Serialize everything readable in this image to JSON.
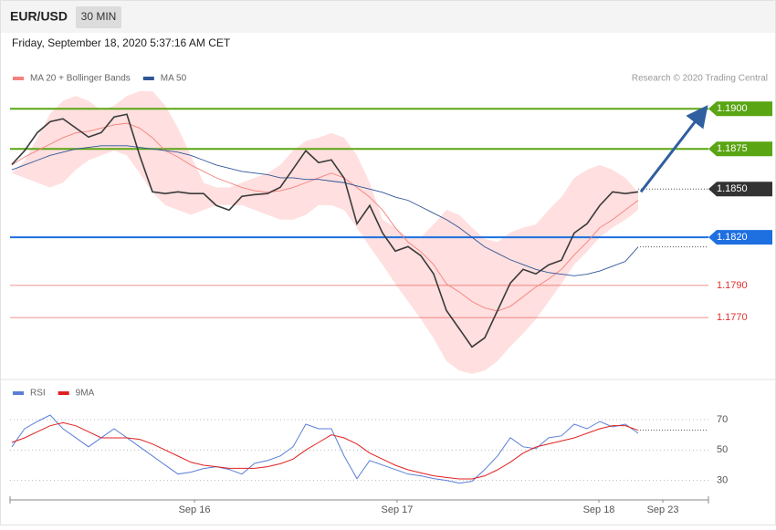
{
  "header": {
    "symbol": "EUR/USD",
    "timeframe": "30 MIN",
    "timestamp": "Friday, September 18, 2020 5:37:16 AM CET"
  },
  "chart_data": [
    {
      "type": "line",
      "credit": "Research © 2020 Trading Central",
      "x": [
        0,
        1,
        2,
        3,
        4,
        5,
        6,
        7,
        8,
        9,
        10,
        11,
        12,
        13,
        14,
        15,
        16,
        17,
        18,
        19,
        20,
        21,
        22,
        23,
        24,
        25,
        26,
        27,
        28,
        29,
        30,
        31,
        32,
        33,
        34,
        35,
        36,
        37,
        38,
        39,
        40,
        41,
        42,
        43,
        44,
        45,
        46,
        47,
        48,
        49
      ],
      "values": [
        1.18653,
        1.18739,
        1.18852,
        1.1892,
        1.18938,
        1.18881,
        1.18824,
        1.18852,
        1.18949,
        1.18966,
        1.1871,
        1.18483,
        1.18472,
        1.18483,
        1.18472,
        1.18472,
        1.18398,
        1.18369,
        1.18455,
        1.18466,
        1.18472,
        1.18511,
        1.18625,
        1.18739,
        1.18665,
        1.18682,
        1.18568,
        1.18284,
        1.18398,
        1.18227,
        1.18114,
        1.18142,
        1.18085,
        1.17972,
        1.17744,
        1.17631,
        1.17517,
        1.17574,
        1.17744,
        1.17915,
        1.18,
        1.17972,
        1.18028,
        1.18057,
        1.18227,
        1.18284,
        1.18398,
        1.18483,
        1.18472,
        1.18483
      ],
      "color": "#3a3a3a",
      "series": [
        {
          "name": "MA 20 + Bollinger Bands",
          "color": "#f4817c",
          "values": [
            1.1865,
            1.187,
            1.1874,
            1.1878,
            1.1882,
            1.1885,
            1.1886,
            1.1888,
            1.189,
            1.1891,
            1.1888,
            1.1882,
            1.1874,
            1.187,
            1.1865,
            1.1861,
            1.1857,
            1.1854,
            1.1851,
            1.1849,
            1.1848,
            1.1849,
            1.1851,
            1.1854,
            1.1857,
            1.186,
            1.1857,
            1.1851,
            1.1845,
            1.1837,
            1.1826,
            1.1817,
            1.1811,
            1.1803,
            1.1791,
            1.1786,
            1.178,
            1.1776,
            1.1774,
            1.1777,
            1.1783,
            1.1789,
            1.1794,
            1.18,
            1.1809,
            1.1817,
            1.1826,
            1.1831,
            1.1837,
            1.1843
          ]
        },
        {
          "name": "MA 50",
          "color": "#2f5597",
          "values": [
            1.1862,
            1.1865,
            1.1868,
            1.1871,
            1.1873,
            1.1875,
            1.1876,
            1.1877,
            1.1877,
            1.1877,
            1.1876,
            1.1875,
            1.1874,
            1.1873,
            1.1871,
            1.1868,
            1.1865,
            1.1863,
            1.1861,
            1.186,
            1.1859,
            1.1857,
            1.1857,
            1.1856,
            1.1856,
            1.1855,
            1.1854,
            1.1852,
            1.185,
            1.1848,
            1.1845,
            1.1843,
            1.1839,
            1.1835,
            1.1831,
            1.1826,
            1.182,
            1.1814,
            1.181,
            1.1806,
            1.1803,
            1.18,
            1.1798,
            1.1797,
            1.1796,
            1.1797,
            1.1799,
            1.1802,
            1.1805,
            1.1814
          ]
        }
      ],
      "band": {
        "color": "#ffdfdf",
        "upper": [
          1.186,
          1.1868,
          1.1882,
          1.1897,
          1.1905,
          1.1908,
          1.1905,
          1.1899,
          1.1902,
          1.1908,
          1.1911,
          1.1911,
          1.1902,
          1.1888,
          1.1871,
          1.1854,
          1.1851,
          1.1851,
          1.1854,
          1.1857,
          1.186,
          1.1865,
          1.1874,
          1.188,
          1.1882,
          1.1885,
          1.1882,
          1.1871,
          1.1854,
          1.1831,
          1.1826,
          1.182,
          1.182,
          1.1828,
          1.1837,
          1.1834,
          1.1826,
          1.1819,
          1.1817,
          1.1823,
          1.1826,
          1.1828,
          1.1837,
          1.1845,
          1.1857,
          1.1862,
          1.1865,
          1.1862,
          1.1857,
          1.1848
        ],
        "lower": [
          1.186,
          1.1857,
          1.1854,
          1.1851,
          1.1854,
          1.1862,
          1.1868,
          1.1871,
          1.1874,
          1.1871,
          1.186,
          1.1848,
          1.184,
          1.1837,
          1.1834,
          1.1837,
          1.184,
          1.184,
          1.184,
          1.1837,
          1.1834,
          1.1831,
          1.1831,
          1.1834,
          1.184,
          1.184,
          1.1837,
          1.1826,
          1.1814,
          1.1803,
          1.1791,
          1.178,
          1.1769,
          1.1757,
          1.1743,
          1.1737,
          1.1735,
          1.1737,
          1.1743,
          1.1752,
          1.176,
          1.1769,
          1.178,
          1.1791,
          1.1803,
          1.1811,
          1.182,
          1.1826,
          1.1831,
          1.1837
        ]
      },
      "ylim": [
        1.1732,
        1.1928
      ],
      "levels": [
        {
          "value": 1.19,
          "label": "1.1900",
          "color": "#5aa513",
          "kind": "fill",
          "line": "solid"
        },
        {
          "value": 1.1875,
          "color": "#5aa513",
          "kind": "fill",
          "line": "solid"
        },
        {
          "value": 1.185,
          "label": "1.1850",
          "color": "#333333",
          "kind": "fill",
          "line": "dotted"
        },
        {
          "value": 1.182,
          "label": "1.1820",
          "color": "#1e6fe0",
          "kind": "fill",
          "line": "solid"
        },
        {
          "value": 1.179,
          "label": "1.1790",
          "color": "#e03030",
          "kind": "text",
          "line": "thin"
        },
        {
          "value": 1.177,
          "label": "1.1770",
          "color": "#e03030",
          "kind": "text",
          "line": "thin"
        }
      ],
      "arrow_color": "#2f5fa0"
    },
    {
      "type": "line",
      "series": [
        {
          "name": "RSI",
          "color": "#5b7fd6",
          "values": [
            52.1,
            64.0,
            68.8,
            73.0,
            64.0,
            58.1,
            52.1,
            58.1,
            64.0,
            58.1,
            52.1,
            46.1,
            40.1,
            34.2,
            35.4,
            37.8,
            39.0,
            37.2,
            34.2,
            41.3,
            43.1,
            46.1,
            52.1,
            67.0,
            64.0,
            64.0,
            46.1,
            31.2,
            43.1,
            40.1,
            37.2,
            34.2,
            33.0,
            31.2,
            30.0,
            28.2,
            29.4,
            37.2,
            46.1,
            58.1,
            52.1,
            50.9,
            58.1,
            59.3,
            67.0,
            64.0,
            68.8,
            65.2,
            67.0,
            61.0
          ]
        },
        {
          "name": "9MA",
          "color": "#e02020",
          "values": [
            55,
            58,
            62,
            66,
            68,
            66,
            62,
            58,
            58,
            58,
            57,
            54,
            50,
            46,
            42,
            40,
            39,
            38,
            38,
            38,
            39,
            41,
            44,
            50,
            55,
            60,
            58,
            54,
            48,
            44,
            40,
            37,
            35,
            33,
            32,
            31,
            31,
            33,
            37,
            42,
            48,
            52,
            54,
            56,
            58,
            61,
            64,
            66,
            66,
            63
          ]
        }
      ],
      "ylim": [
        19,
        82
      ],
      "yticks": [
        30,
        50,
        70
      ],
      "grid": true,
      "xlim": [
        -0.14,
        54.5
      ],
      "xticks": [
        {
          "value": 14.29,
          "label": "Sep 16"
        },
        {
          "value": 30.14,
          "label": "Sep 17"
        },
        {
          "value": 45.93,
          "label": "Sep 18"
        },
        {
          "value": 50.93,
          "label": "Sep 23"
        }
      ]
    }
  ]
}
